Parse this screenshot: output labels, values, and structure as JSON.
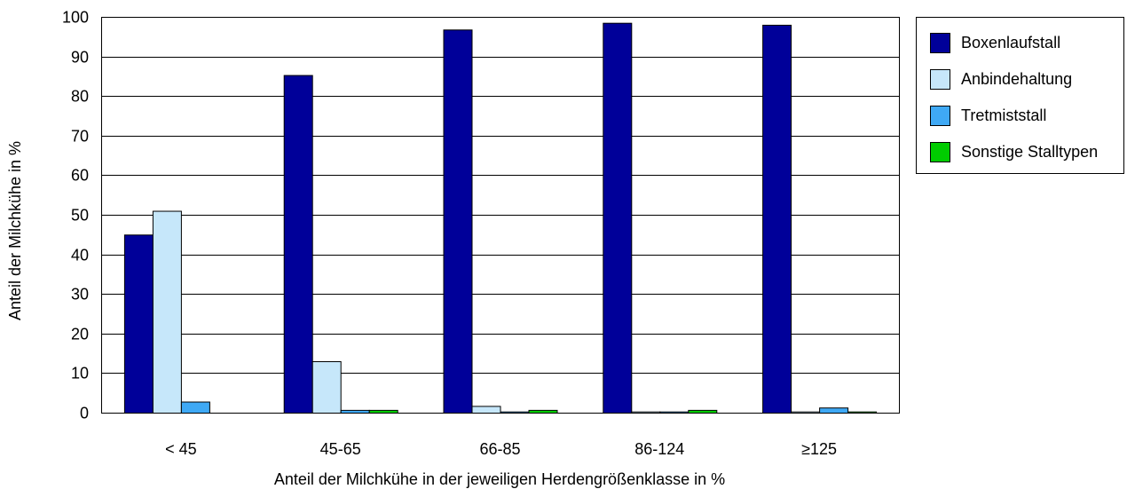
{
  "chart_data": {
    "type": "bar",
    "xlabel": "Anteil der Milchkühe in der jeweiligen Herdengrößenklasse in %",
    "ylabel": "Anteil der Milchkühe in %",
    "ylim": [
      0,
      100
    ],
    "yticks": [
      0,
      10,
      20,
      30,
      40,
      50,
      60,
      70,
      80,
      90,
      100
    ],
    "grid": "horizontal",
    "legend_position": "right",
    "categories": [
      "< 45",
      "45-65",
      "66-85",
      "86-124",
      "≥125"
    ],
    "series": [
      {
        "name": "Boxenlaufstall",
        "color": "#000099",
        "values": [
          45,
          85.3,
          96.8,
          98.5,
          98.0
        ]
      },
      {
        "name": "Anbindehaltung",
        "color": "#C6E7FA",
        "values": [
          51,
          13,
          1.7,
          0.3,
          0.3
        ]
      },
      {
        "name": "Tretmiststall",
        "color": "#3FA9F5",
        "values": [
          2.8,
          0.7,
          0.3,
          0.3,
          1.3
        ]
      },
      {
        "name": "Sonstige Stalltypen",
        "color": "#00CC00",
        "values": [
          0,
          0.7,
          0.7,
          0.7,
          0.3
        ]
      }
    ]
  }
}
